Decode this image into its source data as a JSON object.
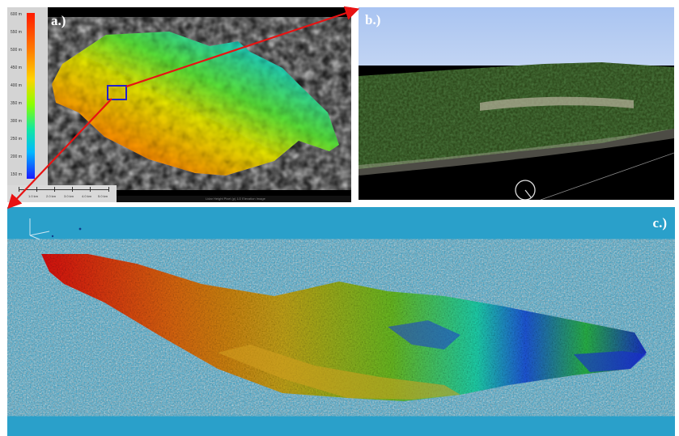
{
  "panels": {
    "a": {
      "label": "a.)",
      "legend": {
        "ticks": [
          "600 m",
          "550 m",
          "500 m",
          "450 m",
          "400 m",
          "350 m",
          "300 m",
          "250 m",
          "200 m",
          "150 m"
        ]
      },
      "scalebar": {
        "labels": [
          "1.0 km",
          "2.0 km",
          "3.0 km",
          "4.0 km",
          "5.0 km"
        ]
      },
      "status_text": "Lidar Height Pixel (p) 1/2 Elevation Image"
    },
    "b": {
      "label": "b.)"
    },
    "c": {
      "label": "c.)"
    }
  },
  "colors": {
    "arrow": "#e81212",
    "selection_box": "#2222cc",
    "panel_c_background": "#2aa0ca",
    "label_white": "#ffffff"
  },
  "icons": {
    "axis_gizmo": "axes-icon",
    "compass": "compass-icon"
  }
}
